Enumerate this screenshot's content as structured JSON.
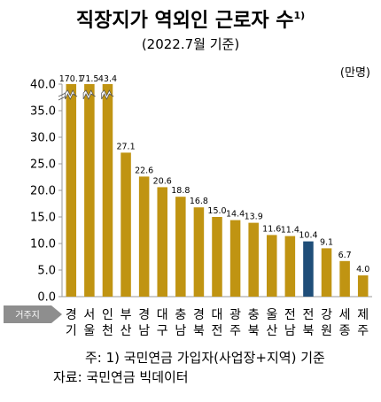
{
  "chart_data": {
    "type": "bar",
    "title": "직장지가 역외인 근로자 수",
    "title_footnote": "1)",
    "subtitle": "(2022.7월 기준)",
    "unit_label": "(만명)",
    "x_badge": "거주지",
    "ylim": [
      0,
      40
    ],
    "yticks": [
      "0.0",
      "5.0",
      "10.0",
      "15.0",
      "20.0",
      "25.0",
      "30.0",
      "35.0",
      "40.0"
    ],
    "axis_break": true,
    "categories": [
      [
        "경",
        "기"
      ],
      [
        "서",
        "울"
      ],
      [
        "인",
        "천"
      ],
      [
        "부",
        "산"
      ],
      [
        "경",
        "남"
      ],
      [
        "대",
        "구"
      ],
      [
        "충",
        "남"
      ],
      [
        "경",
        "북"
      ],
      [
        "대",
        "전"
      ],
      [
        "광",
        "주"
      ],
      [
        "충",
        "북"
      ],
      [
        "울",
        "산"
      ],
      [
        "전",
        "남"
      ],
      [
        "전",
        "북"
      ],
      [
        "강",
        "원"
      ],
      [
        "세",
        "종"
      ],
      [
        "제",
        "주"
      ]
    ],
    "values": [
      170.1,
      71.5,
      43.4,
      27.1,
      22.6,
      20.6,
      18.8,
      16.8,
      15.0,
      14.4,
      13.9,
      11.6,
      11.4,
      10.4,
      9.1,
      6.7,
      4.0
    ],
    "labels": [
      "170.1",
      "71.5",
      "43.4",
      "27.1",
      "22.6",
      "20.6",
      "18.8",
      "16.8",
      "15.0",
      "14.4",
      "13.9",
      "11.6",
      "11.4",
      "10.4",
      "9.1",
      "6.7",
      "4.0"
    ],
    "highlight_category": "전북",
    "colors": {
      "bar": "#C09412",
      "highlight": "#1F4E79",
      "axis": "#999999",
      "badge": "#8E8E8E"
    },
    "notes": [
      "주: 1) 국민연금  가입자(사업장+지역)  기준",
      "자료: 국민연금  빅데이터"
    ]
  }
}
